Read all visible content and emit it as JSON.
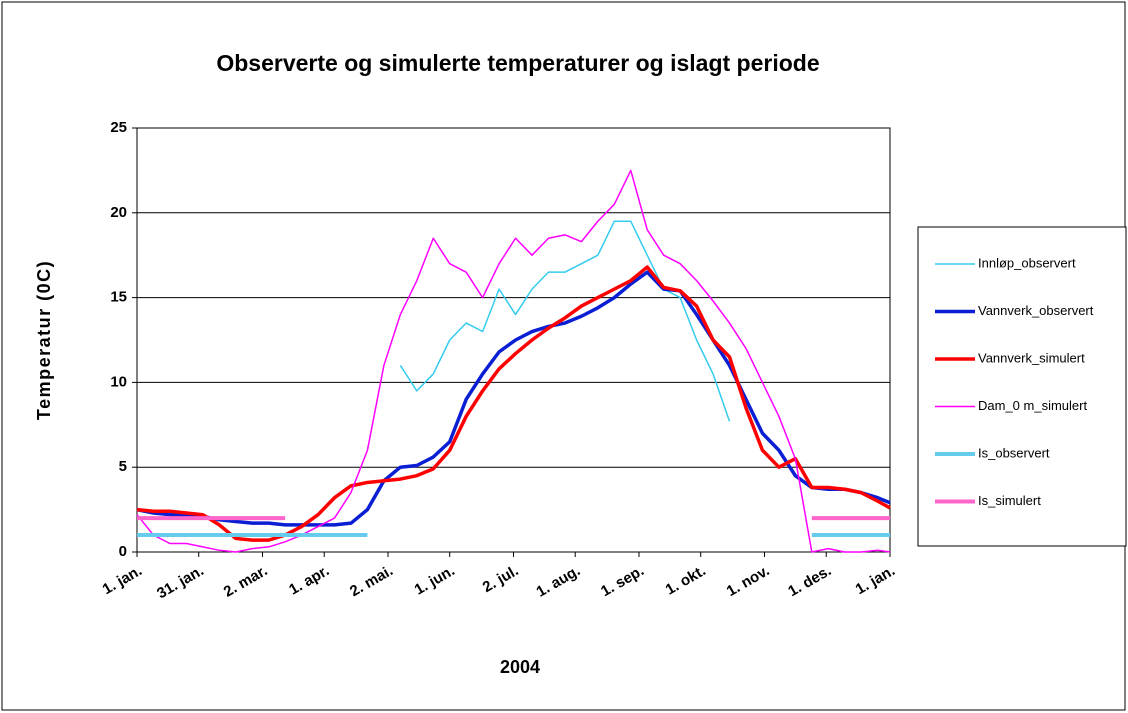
{
  "chart_data": {
    "type": "line",
    "title": "Observerte og simulerte temperaturer og islagt periode",
    "x_label": "2004",
    "y_label": "Temperatur  (0C)",
    "xlim": [
      0,
      366
    ],
    "xticks": [
      {
        "value": 0,
        "label": "1. jan."
      },
      {
        "value": 30,
        "label": "31. jan."
      },
      {
        "value": 61,
        "label": "2. mar."
      },
      {
        "value": 91,
        "label": "1. apr."
      },
      {
        "value": 122,
        "label": "2. mai."
      },
      {
        "value": 152,
        "label": "1. jun."
      },
      {
        "value": 183,
        "label": "2. jul."
      },
      {
        "value": 213,
        "label": "1. aug."
      },
      {
        "value": 244,
        "label": "1. sep."
      },
      {
        "value": 274,
        "label": "1. okt."
      },
      {
        "value": 305,
        "label": "1. nov."
      },
      {
        "value": 335,
        "label": "1. des."
      },
      {
        "value": 366,
        "label": "1. jan."
      }
    ],
    "ylim": [
      0,
      25
    ],
    "yticks": [
      0,
      5,
      10,
      15,
      20,
      25
    ],
    "grid": true,
    "legend": "right",
    "x": [
      0,
      8,
      16,
      24,
      32,
      40,
      48,
      56,
      64,
      72,
      80,
      88,
      96,
      104,
      112,
      120,
      128,
      136,
      144,
      152,
      160,
      168,
      176,
      184,
      192,
      200,
      208,
      216,
      224,
      232,
      240,
      248,
      256,
      264,
      272,
      280,
      288,
      296,
      304,
      312,
      320,
      328,
      336,
      344,
      352,
      360,
      366
    ],
    "series": [
      {
        "name": "Innløp_observert",
        "color": "#33ccee",
        "width": 1.5,
        "values": [
          null,
          null,
          null,
          null,
          null,
          null,
          null,
          null,
          null,
          null,
          null,
          null,
          null,
          null,
          null,
          null,
          11.0,
          9.5,
          10.5,
          12.5,
          13.5,
          13.0,
          15.5,
          14.0,
          15.5,
          16.5,
          16.5,
          17.0,
          17.5,
          19.5,
          19.5,
          17.5,
          15.5,
          15.0,
          12.5,
          10.5,
          7.7,
          null,
          null,
          null,
          null,
          null,
          null,
          null,
          null,
          null,
          null
        ]
      },
      {
        "name": "Vannverk_observert",
        "color": "#0a1fd4",
        "width": 3.5,
        "values": [
          2.5,
          2.3,
          2.2,
          2.2,
          2.1,
          1.9,
          1.8,
          1.7,
          1.7,
          1.6,
          1.6,
          1.6,
          1.6,
          1.7,
          2.5,
          4.2,
          5.0,
          5.1,
          5.6,
          6.5,
          9.0,
          10.5,
          11.8,
          12.5,
          13.0,
          13.3,
          13.5,
          13.9,
          14.4,
          15.0,
          15.8,
          16.5,
          15.5,
          15.4,
          14.0,
          12.5,
          11.0,
          9.0,
          7.0,
          6.0,
          4.5,
          3.8,
          3.7,
          3.7,
          3.5,
          3.2,
          2.9
        ]
      },
      {
        "name": "Vannverk_simulert",
        "color": "#ff0000",
        "width": 3.5,
        "values": [
          2.5,
          2.4,
          2.4,
          2.3,
          2.2,
          1.6,
          0.8,
          0.7,
          0.7,
          1.0,
          1.5,
          2.2,
          3.2,
          3.9,
          4.1,
          4.2,
          4.3,
          4.5,
          4.9,
          6.0,
          8.0,
          9.5,
          10.8,
          11.7,
          12.5,
          13.2,
          13.8,
          14.5,
          15.0,
          15.5,
          16.0,
          16.8,
          15.6,
          15.4,
          14.5,
          12.5,
          11.5,
          8.5,
          6.0,
          5.0,
          5.5,
          3.8,
          3.8,
          3.7,
          3.5,
          3.0,
          2.6
        ]
      },
      {
        "name": "Dam_0 m_simulert",
        "color": "#ff00ff",
        "width": 1.5,
        "values": [
          2.2,
          1.0,
          0.5,
          0.5,
          0.3,
          0.1,
          0.0,
          0.2,
          0.3,
          0.6,
          1.0,
          1.5,
          2.0,
          3.5,
          6.0,
          11.0,
          14.0,
          16.0,
          18.5,
          17.0,
          16.5,
          15.0,
          17.0,
          18.5,
          17.5,
          18.5,
          18.7,
          18.3,
          19.5,
          20.5,
          22.5,
          19.0,
          17.5,
          17.0,
          16.0,
          14.8,
          13.5,
          12.0,
          10.0,
          8.0,
          5.5,
          0.0,
          0.2,
          0.0,
          0.0,
          0.1,
          0.0
        ]
      },
      {
        "name": "Is_observert",
        "color": "#66ccee",
        "width": 4,
        "values": [
          1,
          1,
          1,
          1,
          1,
          1,
          1,
          1,
          1,
          1,
          1,
          1,
          1,
          1,
          1,
          null,
          null,
          null,
          null,
          null,
          null,
          null,
          null,
          null,
          null,
          null,
          null,
          null,
          null,
          null,
          null,
          null,
          null,
          null,
          null,
          null,
          null,
          null,
          null,
          null,
          null,
          1,
          1,
          1,
          1,
          1,
          1
        ]
      },
      {
        "name": "Is_simulert",
        "color": "#ff66cc",
        "width": 4,
        "values": [
          2,
          2,
          2,
          2,
          2,
          2,
          2,
          2,
          2,
          2,
          null,
          null,
          null,
          null,
          null,
          null,
          null,
          null,
          null,
          null,
          null,
          null,
          null,
          null,
          null,
          null,
          null,
          null,
          null,
          null,
          null,
          null,
          null,
          null,
          null,
          null,
          null,
          null,
          null,
          null,
          null,
          2,
          2,
          2,
          2,
          2,
          2
        ]
      }
    ]
  }
}
